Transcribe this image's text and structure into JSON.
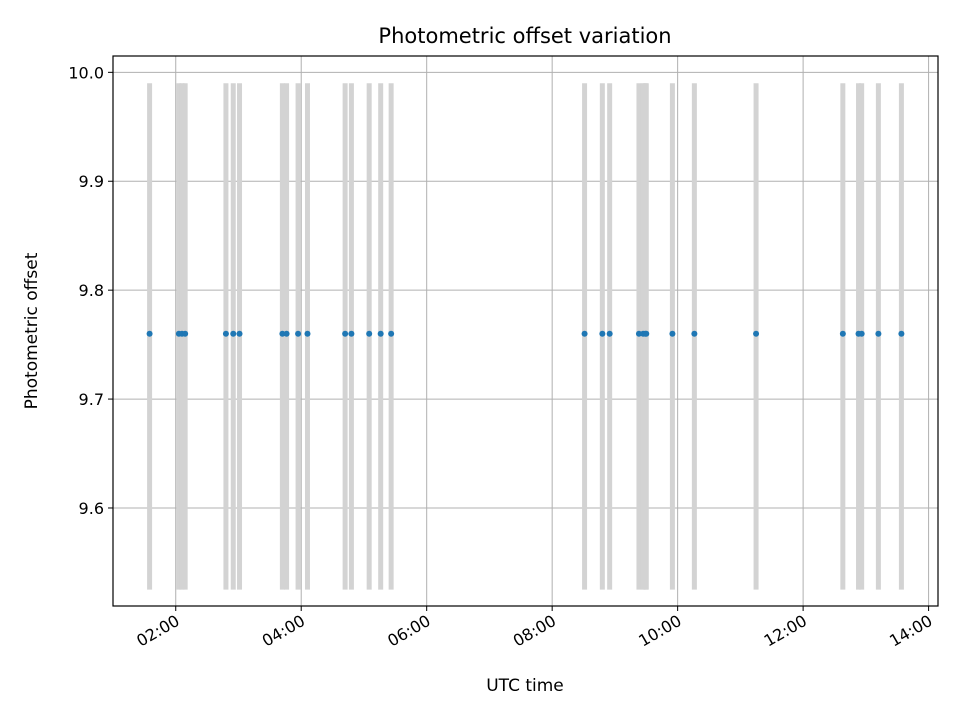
{
  "chart_data": {
    "type": "scatter",
    "title": "Photometric offset variation",
    "xlabel": "UTC time",
    "ylabel": "Photometric offset",
    "x_tick_labels": [
      "02:00",
      "04:00",
      "06:00",
      "08:00",
      "10:00",
      "12:00",
      "14:00"
    ],
    "y_tick_labels": [
      "9.6",
      "9.7",
      "9.8",
      "9.9",
      "10.0"
    ],
    "xlim": [
      "01:00",
      "14:09"
    ],
    "ylim": [
      9.51,
      10.015
    ],
    "grid": true,
    "band_range": [
      9.525,
      9.99
    ],
    "band_color": "#d3d3d3",
    "point_color": "#1f77b4",
    "series": [
      {
        "y_value": 9.76,
        "x": [
          "01:35",
          "02:03",
          "02:06",
          "02:09",
          "02:48",
          "02:55",
          "03:01",
          "03:42",
          "03:46",
          "03:57",
          "04:06",
          "04:42",
          "04:48",
          "05:05",
          "05:16",
          "05:26",
          "08:31",
          "08:48",
          "08:55",
          "09:23",
          "09:27",
          "09:29",
          "09:30",
          "09:55",
          "10:16",
          "11:15",
          "12:38",
          "12:53",
          "12:56",
          "13:12",
          "13:34"
        ]
      }
    ]
  }
}
